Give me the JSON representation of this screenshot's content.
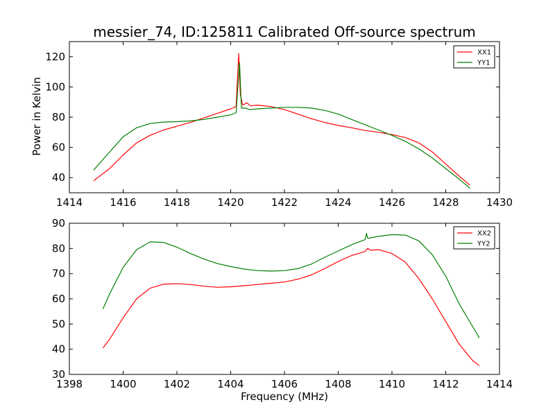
{
  "chart_data": [
    {
      "type": "line",
      "title": "messier_74, ID:125811 Calibrated Off-source spectrum",
      "xlabel": "",
      "ylabel": "Power in Kelvin",
      "xlim": [
        1414,
        1430
      ],
      "ylim": [
        30,
        130
      ],
      "xticks": [
        "1414",
        "1416",
        "1418",
        "1420",
        "1422",
        "1424",
        "1426",
        "1428",
        "1430"
      ],
      "yticks": [
        "40",
        "60",
        "80",
        "100",
        "120"
      ],
      "legend_position": "top-right",
      "series": [
        {
          "name": "XX1",
          "color": "#ff0000",
          "points": [
            [
              1414.9,
              38
            ],
            [
              1415.5,
              46
            ],
            [
              1416.0,
              55
            ],
            [
              1416.5,
              63
            ],
            [
              1417.0,
              68
            ],
            [
              1417.5,
              71.5
            ],
            [
              1418.0,
              74
            ],
            [
              1418.5,
              76.5
            ],
            [
              1419.0,
              79.5
            ],
            [
              1419.5,
              82.5
            ],
            [
              1420.0,
              85.5
            ],
            [
              1420.2,
              87
            ],
            [
              1420.3,
              122
            ],
            [
              1420.36,
              95
            ],
            [
              1420.45,
              88
            ],
            [
              1420.6,
              89.5
            ],
            [
              1420.75,
              87.5
            ],
            [
              1421.0,
              88
            ],
            [
              1421.5,
              87
            ],
            [
              1422.0,
              85
            ],
            [
              1422.5,
              82
            ],
            [
              1423.0,
              79
            ],
            [
              1423.5,
              76.5
            ],
            [
              1424.0,
              74.5
            ],
            [
              1424.5,
              73
            ],
            [
              1425.0,
              71.2
            ],
            [
              1425.5,
              70
            ],
            [
              1426.0,
              68.5
            ],
            [
              1426.5,
              66.5
            ],
            [
              1427.0,
              63
            ],
            [
              1427.5,
              57
            ],
            [
              1428.0,
              49
            ],
            [
              1428.5,
              41
            ],
            [
              1428.9,
              35
            ]
          ]
        },
        {
          "name": "YY1",
          "color": "#008000",
          "points": [
            [
              1414.9,
              45
            ],
            [
              1415.5,
              57
            ],
            [
              1416.0,
              67
            ],
            [
              1416.5,
              73
            ],
            [
              1417.0,
              75.8
            ],
            [
              1417.5,
              76.8
            ],
            [
              1418.0,
              77
            ],
            [
              1418.5,
              77.5
            ],
            [
              1419.0,
              78.5
            ],
            [
              1419.5,
              80
            ],
            [
              1420.0,
              81.5
            ],
            [
              1420.2,
              83
            ],
            [
              1420.33,
              116
            ],
            [
              1420.4,
              86
            ],
            [
              1420.55,
              86
            ],
            [
              1420.7,
              85
            ],
            [
              1421.0,
              85.5
            ],
            [
              1421.5,
              86
            ],
            [
              1422.0,
              86.5
            ],
            [
              1422.5,
              86.5
            ],
            [
              1423.0,
              86
            ],
            [
              1423.5,
              84.5
            ],
            [
              1424.0,
              82
            ],
            [
              1424.5,
              78.5
            ],
            [
              1425.0,
              75
            ],
            [
              1425.5,
              71.5
            ],
            [
              1426.0,
              68
            ],
            [
              1426.5,
              64
            ],
            [
              1427.0,
              59
            ],
            [
              1427.5,
              53
            ],
            [
              1428.0,
              46
            ],
            [
              1428.5,
              39
            ],
            [
              1428.9,
              33
            ]
          ]
        }
      ]
    },
    {
      "type": "line",
      "title": "",
      "xlabel": "Frequency (MHz)",
      "ylabel": "",
      "xlim": [
        1398,
        1414
      ],
      "ylim": [
        30,
        90
      ],
      "xticks": [
        "1398",
        "1400",
        "1402",
        "1404",
        "1406",
        "1408",
        "1410",
        "1412",
        "1414"
      ],
      "yticks": [
        "30",
        "40",
        "50",
        "60",
        "70",
        "80",
        "90"
      ],
      "legend_position": "top-right",
      "series": [
        {
          "name": "XX2",
          "color": "#ff0000",
          "points": [
            [
              1399.25,
              40.5
            ],
            [
              1399.5,
              44
            ],
            [
              1400.0,
              52.5
            ],
            [
              1400.5,
              60
            ],
            [
              1401.0,
              64.2
            ],
            [
              1401.5,
              65.8
            ],
            [
              1402.0,
              66
            ],
            [
              1402.5,
              65.7
            ],
            [
              1403.0,
              65
            ],
            [
              1403.5,
              64.6
            ],
            [
              1404.0,
              64.8
            ],
            [
              1404.5,
              65.2
            ],
            [
              1405.0,
              65.7
            ],
            [
              1405.5,
              66.2
            ],
            [
              1406.0,
              66.7
            ],
            [
              1406.5,
              67.8
            ],
            [
              1407.0,
              69.5
            ],
            [
              1407.5,
              72
            ],
            [
              1408.0,
              74.8
            ],
            [
              1408.5,
              77.2
            ],
            [
              1409.0,
              78.8
            ],
            [
              1409.1,
              80
            ],
            [
              1409.2,
              79.3
            ],
            [
              1409.5,
              79.5
            ],
            [
              1410.0,
              78
            ],
            [
              1410.5,
              74.5
            ],
            [
              1411.0,
              68
            ],
            [
              1411.5,
              60
            ],
            [
              1412.0,
              51
            ],
            [
              1412.5,
              42
            ],
            [
              1413.0,
              35.5
            ],
            [
              1413.25,
              33.5
            ]
          ]
        },
        {
          "name": "YY2",
          "color": "#008000",
          "points": [
            [
              1399.25,
              56
            ],
            [
              1399.5,
              62
            ],
            [
              1400.0,
              72.5
            ],
            [
              1400.5,
              79.5
            ],
            [
              1401.0,
              82.6
            ],
            [
              1401.5,
              82.4
            ],
            [
              1402.0,
              80.5
            ],
            [
              1402.5,
              78
            ],
            [
              1403.0,
              75.8
            ],
            [
              1403.5,
              74
            ],
            [
              1404.0,
              72.8
            ],
            [
              1404.5,
              71.8
            ],
            [
              1405.0,
              71.2
            ],
            [
              1405.5,
              71
            ],
            [
              1406.0,
              71.2
            ],
            [
              1406.5,
              72
            ],
            [
              1407.0,
              73.8
            ],
            [
              1407.5,
              76.5
            ],
            [
              1408.0,
              79
            ],
            [
              1408.5,
              81.5
            ],
            [
              1409.0,
              83.5
            ],
            [
              1409.05,
              86
            ],
            [
              1409.1,
              84
            ],
            [
              1409.5,
              84.8
            ],
            [
              1410.0,
              85.5
            ],
            [
              1410.5,
              85.3
            ],
            [
              1411.0,
              83
            ],
            [
              1411.5,
              77.5
            ],
            [
              1412.0,
              69
            ],
            [
              1412.5,
              58
            ],
            [
              1413.0,
              49
            ],
            [
              1413.25,
              44.5
            ]
          ]
        }
      ]
    }
  ]
}
